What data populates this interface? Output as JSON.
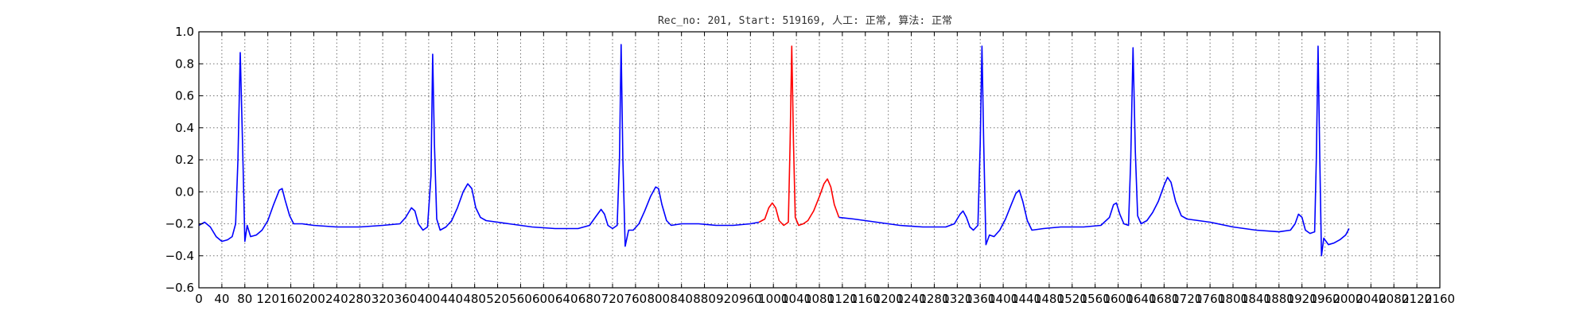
{
  "chart_data": {
    "type": "line",
    "title": "Rec_no: 201, Start: 519169, 人工: 正常, 算法: 正常",
    "xlabel": "",
    "ylabel": "",
    "xlim": [
      0,
      2160
    ],
    "ylim": [
      -0.6,
      1.0
    ],
    "grid": true,
    "x_tick_step": 40,
    "x_ticks": [
      0,
      40,
      80,
      120,
      160,
      200,
      240,
      280,
      320,
      360,
      400,
      440,
      480,
      520,
      560,
      600,
      640,
      680,
      720,
      760,
      800,
      840,
      880,
      920,
      960,
      1000,
      1040,
      1080,
      1120,
      1160,
      1200,
      1240,
      1280,
      1320,
      1360,
      1400,
      1440,
      1480,
      1520,
      1560,
      1600,
      1640,
      1680,
      1720,
      1760,
      1800,
      1840,
      1880,
      1920,
      1960,
      2000,
      2040,
      2080,
      2120,
      2160
    ],
    "y_ticks": [
      -0.6,
      -0.4,
      -0.2,
      0.0,
      0.2,
      0.4,
      0.6,
      0.8,
      1.0
    ],
    "y_tick_labels": [
      "−0.6",
      "−0.4",
      "−0.2",
      "0.0",
      "0.2",
      "0.4",
      "0.6",
      "0.8",
      "1.0"
    ],
    "series": [
      {
        "color": "#0000ff",
        "points": [
          [
            0,
            -0.21
          ],
          [
            10,
            -0.19
          ],
          [
            20,
            -0.22
          ],
          [
            30,
            -0.28
          ],
          [
            40,
            -0.31
          ],
          [
            50,
            -0.3
          ],
          [
            58,
            -0.28
          ],
          [
            64,
            -0.2
          ],
          [
            68,
            0.2
          ],
          [
            72,
            0.87
          ],
          [
            76,
            0.3
          ],
          [
            80,
            -0.31
          ],
          [
            84,
            -0.21
          ],
          [
            90,
            -0.28
          ],
          [
            100,
            -0.27
          ],
          [
            110,
            -0.24
          ],
          [
            120,
            -0.18
          ],
          [
            130,
            -0.08
          ],
          [
            140,
            0.01
          ],
          [
            145,
            0.02
          ],
          [
            150,
            -0.05
          ],
          [
            158,
            -0.15
          ],
          [
            165,
            -0.2
          ],
          [
            180,
            -0.2
          ],
          [
            200,
            -0.21
          ],
          [
            240,
            -0.22
          ],
          [
            280,
            -0.22
          ],
          [
            320,
            -0.21
          ],
          [
            350,
            -0.2
          ],
          [
            360,
            -0.16
          ],
          [
            370,
            -0.1
          ],
          [
            376,
            -0.12
          ],
          [
            382,
            -0.2
          ],
          [
            390,
            -0.24
          ],
          [
            398,
            -0.22
          ],
          [
            404,
            0.1
          ],
          [
            407,
            0.86
          ],
          [
            410,
            0.3
          ],
          [
            414,
            -0.17
          ],
          [
            420,
            -0.24
          ],
          [
            430,
            -0.22
          ],
          [
            440,
            -0.18
          ],
          [
            450,
            -0.1
          ],
          [
            460,
            0.0
          ],
          [
            468,
            0.05
          ],
          [
            475,
            0.02
          ],
          [
            482,
            -0.1
          ],
          [
            490,
            -0.16
          ],
          [
            500,
            -0.18
          ],
          [
            540,
            -0.2
          ],
          [
            580,
            -0.22
          ],
          [
            620,
            -0.23
          ],
          [
            660,
            -0.23
          ],
          [
            680,
            -0.21
          ],
          [
            690,
            -0.16
          ],
          [
            700,
            -0.11
          ],
          [
            706,
            -0.14
          ],
          [
            712,
            -0.21
          ],
          [
            720,
            -0.23
          ],
          [
            728,
            -0.21
          ],
          [
            732,
            0.2
          ],
          [
            735,
            0.92
          ],
          [
            738,
            0.2
          ],
          [
            742,
            -0.34
          ],
          [
            748,
            -0.24
          ],
          [
            756,
            -0.24
          ],
          [
            766,
            -0.2
          ],
          [
            776,
            -0.12
          ],
          [
            786,
            -0.03
          ],
          [
            795,
            0.03
          ],
          [
            800,
            0.02
          ],
          [
            806,
            -0.08
          ],
          [
            814,
            -0.18
          ],
          [
            822,
            -0.21
          ],
          [
            840,
            -0.2
          ],
          [
            870,
            -0.2
          ],
          [
            900,
            -0.21
          ],
          [
            930,
            -0.21
          ],
          [
            960,
            -0.2
          ],
          [
            975,
            -0.19
          ]
        ]
      },
      {
        "color": "#ff0000",
        "points": [
          [
            975,
            -0.19
          ],
          [
            985,
            -0.17
          ],
          [
            992,
            -0.1
          ],
          [
            998,
            -0.07
          ],
          [
            1004,
            -0.1
          ],
          [
            1010,
            -0.18
          ],
          [
            1018,
            -0.21
          ],
          [
            1026,
            -0.19
          ],
          [
            1029,
            0.3
          ],
          [
            1032,
            0.91
          ],
          [
            1035,
            0.3
          ],
          [
            1038,
            -0.16
          ],
          [
            1044,
            -0.21
          ],
          [
            1052,
            -0.2
          ],
          [
            1060,
            -0.18
          ],
          [
            1070,
            -0.12
          ],
          [
            1080,
            -0.03
          ],
          [
            1088,
            0.05
          ],
          [
            1094,
            0.08
          ],
          [
            1100,
            0.03
          ],
          [
            1106,
            -0.08
          ],
          [
            1114,
            -0.16
          ]
        ]
      },
      {
        "color": "#0000ff",
        "points": [
          [
            1114,
            -0.16
          ],
          [
            1140,
            -0.17
          ],
          [
            1180,
            -0.19
          ],
          [
            1220,
            -0.21
          ],
          [
            1260,
            -0.22
          ],
          [
            1300,
            -0.22
          ],
          [
            1315,
            -0.2
          ],
          [
            1325,
            -0.14
          ],
          [
            1330,
            -0.12
          ],
          [
            1336,
            -0.16
          ],
          [
            1342,
            -0.22
          ],
          [
            1348,
            -0.24
          ],
          [
            1356,
            -0.21
          ],
          [
            1360,
            0.3
          ],
          [
            1363,
            0.91
          ],
          [
            1366,
            0.3
          ],
          [
            1370,
            -0.33
          ],
          [
            1376,
            -0.27
          ],
          [
            1384,
            -0.28
          ],
          [
            1394,
            -0.24
          ],
          [
            1404,
            -0.17
          ],
          [
            1414,
            -0.08
          ],
          [
            1422,
            -0.01
          ],
          [
            1428,
            0.01
          ],
          [
            1434,
            -0.06
          ],
          [
            1442,
            -0.18
          ],
          [
            1450,
            -0.24
          ],
          [
            1470,
            -0.23
          ],
          [
            1500,
            -0.22
          ],
          [
            1540,
            -0.22
          ],
          [
            1570,
            -0.21
          ],
          [
            1585,
            -0.16
          ],
          [
            1592,
            -0.08
          ],
          [
            1597,
            -0.07
          ],
          [
            1603,
            -0.14
          ],
          [
            1610,
            -0.2
          ],
          [
            1618,
            -0.21
          ],
          [
            1622,
            0.2
          ],
          [
            1626,
            0.9
          ],
          [
            1630,
            0.25
          ],
          [
            1634,
            -0.15
          ],
          [
            1640,
            -0.2
          ],
          [
            1650,
            -0.18
          ],
          [
            1660,
            -0.13
          ],
          [
            1670,
            -0.06
          ],
          [
            1680,
            0.04
          ],
          [
            1686,
            0.09
          ],
          [
            1692,
            0.06
          ],
          [
            1700,
            -0.06
          ],
          [
            1710,
            -0.15
          ],
          [
            1720,
            -0.17
          ],
          [
            1760,
            -0.19
          ],
          [
            1800,
            -0.22
          ],
          [
            1840,
            -0.24
          ],
          [
            1880,
            -0.25
          ],
          [
            1900,
            -0.24
          ],
          [
            1908,
            -0.2
          ],
          [
            1914,
            -0.14
          ],
          [
            1920,
            -0.16
          ],
          [
            1926,
            -0.24
          ],
          [
            1934,
            -0.26
          ],
          [
            1942,
            -0.25
          ],
          [
            1945,
            0.2
          ],
          [
            1948,
            0.91
          ],
          [
            1951,
            0.2
          ],
          [
            1954,
            -0.4
          ],
          [
            1958,
            -0.29
          ],
          [
            1966,
            -0.33
          ],
          [
            1976,
            -0.32
          ],
          [
            1986,
            -0.3
          ],
          [
            1996,
            -0.27
          ],
          [
            2002,
            -0.23
          ]
        ]
      }
    ]
  }
}
